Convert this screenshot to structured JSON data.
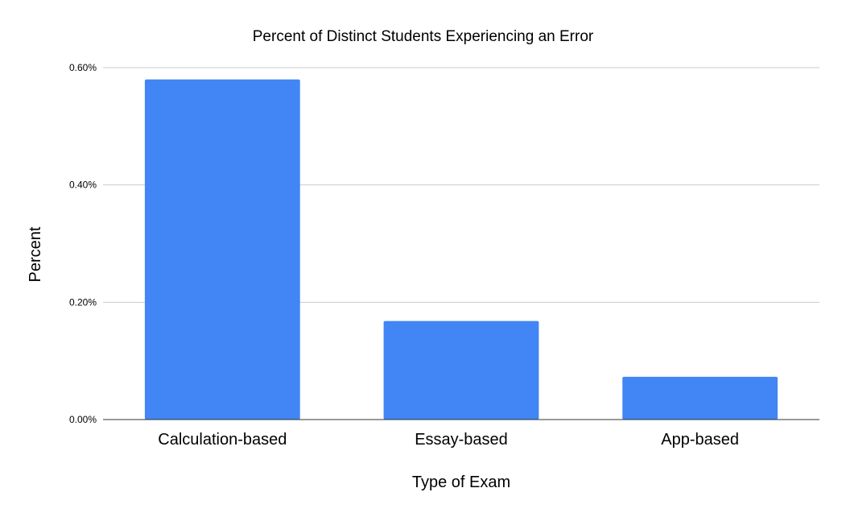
{
  "chart_data": {
    "type": "bar",
    "title": "Percent of Distinct Students Experiencing an Error",
    "xlabel": "Type of Exam",
    "ylabel": "Percent",
    "categories": [
      "Calculation-based",
      "Essay-based",
      "App-based"
    ],
    "values": [
      0.58,
      0.168,
      0.073
    ],
    "ylim": [
      0,
      0.6
    ],
    "y_ticks": [
      0,
      0.2,
      0.4,
      0.6
    ],
    "y_tick_labels": [
      "0.00%",
      "0.20%",
      "0.40%",
      "0.60%"
    ],
    "grid": true,
    "legend": "none",
    "colors": {
      "bar": "#4285f4",
      "grid": "#cccccc",
      "axis": "#333333"
    }
  }
}
